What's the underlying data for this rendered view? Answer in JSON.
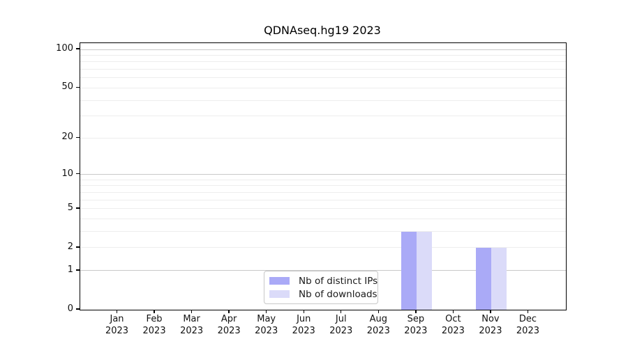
{
  "figure": {
    "background": "#ffffff"
  },
  "chart_data": {
    "type": "bar",
    "title": "QDNAseq.hg19 2023",
    "year": "2023",
    "categories": [
      "Jan",
      "Feb",
      "Mar",
      "Apr",
      "May",
      "Jun",
      "Jul",
      "Aug",
      "Sep",
      "Oct",
      "Nov",
      "Dec"
    ],
    "series": [
      {
        "name": "Nb of distinct IPs",
        "color": "#aaaaf7",
        "values": [
          0,
          0,
          0,
          0,
          0,
          0,
          0,
          0,
          3,
          0,
          2,
          0
        ]
      },
      {
        "name": "Nb of downloads",
        "color": "#dbdbf9",
        "values": [
          0,
          0,
          0,
          0,
          0,
          0,
          0,
          0,
          3,
          0,
          2,
          0
        ]
      }
    ],
    "yticks": [
      0,
      1,
      2,
      5,
      10,
      20,
      50,
      100
    ],
    "ylim": [
      0,
      112
    ],
    "scale": "log1p",
    "grid": {
      "major_values": [
        1,
        10,
        100
      ],
      "minor_values": [
        2,
        3,
        4,
        5,
        6,
        7,
        8,
        9,
        20,
        30,
        40,
        50,
        60,
        70,
        80,
        90
      ],
      "major_color": "#c9c9c9",
      "minor_color": "#ededed"
    },
    "legend_position": "lower-center",
    "xlabel": "",
    "ylabel": ""
  }
}
